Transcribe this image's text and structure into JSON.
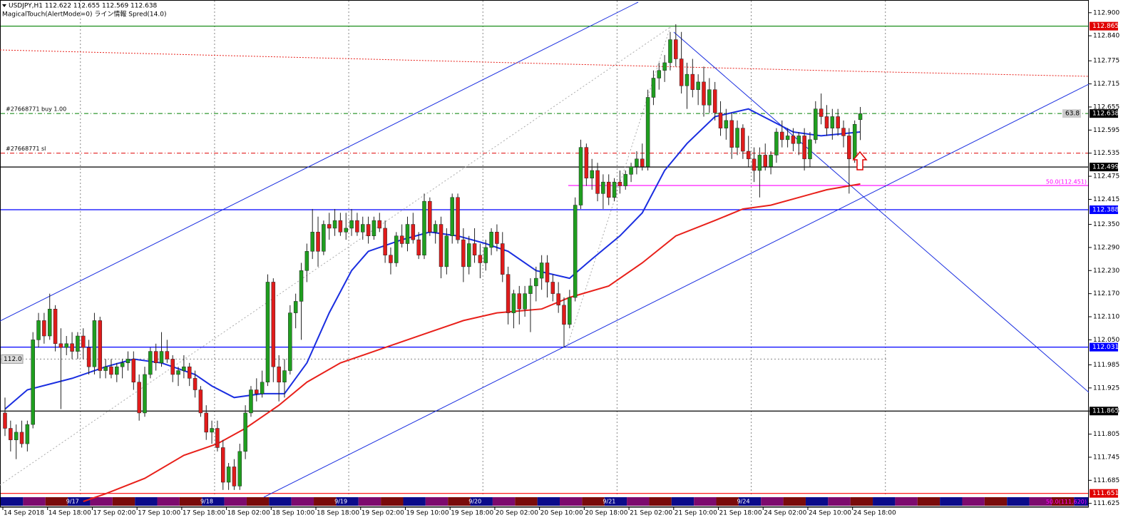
{
  "header": {
    "symbol_line": "USDJPY,H1  112.622 112.655 112.569 112.638",
    "indicator_line": "MagicalTouch(AlertMode=0) ライン情報 Spred(14.0)"
  },
  "chart_data": {
    "type": "candlestick",
    "categories": [
      "14 Sep 2018",
      null,
      null,
      null,
      null,
      null,
      null,
      null,
      "14 Sep 18:00",
      null,
      null,
      null,
      null,
      null,
      null,
      null,
      "17 Sep 02:00",
      null,
      null,
      null,
      null,
      null,
      null,
      null,
      "17 Sep 10:00",
      null,
      null,
      null,
      null,
      null,
      null,
      null,
      "17 Sep 18:00",
      null,
      null,
      null,
      null,
      null,
      null,
      null,
      "18 Sep 02:00",
      null,
      null,
      null,
      null,
      null,
      null,
      null,
      "18 Sep 10:00",
      null,
      null,
      null,
      null,
      null,
      null,
      null,
      "18 Sep 18:00",
      null,
      null,
      null,
      null,
      null,
      null,
      null,
      "19 Sep 02:00",
      null,
      null,
      null,
      null,
      null,
      null,
      null,
      "19 Sep 10:00",
      null,
      null,
      null,
      null,
      null,
      null,
      null,
      "19 Sep 18:00",
      null,
      null,
      null,
      null,
      null,
      null,
      null,
      "20 Sep 02:00",
      null,
      null,
      null,
      null,
      null,
      null,
      null,
      "20 Sep 10:00",
      null,
      null,
      null,
      null,
      null,
      null,
      null,
      "20 Sep 18:00",
      null,
      null,
      null,
      null,
      null,
      null,
      null,
      "21 Sep 02:00",
      null,
      null,
      null,
      null,
      null,
      null,
      null,
      "21 Sep 10:00",
      null,
      null,
      null,
      null,
      null,
      null,
      null,
      "21 Sep 18:00",
      null,
      null,
      null,
      null,
      null,
      null,
      null,
      "24 Sep 02:00",
      null,
      null,
      null,
      null,
      null,
      null,
      null,
      "24 Sep 10:00",
      null,
      null,
      null,
      null,
      null,
      null,
      null,
      "24 Sep 18:00",
      null
    ],
    "open": [
      111.86,
      111.82,
      111.79,
      111.81,
      111.78,
      111.83,
      112.05,
      112.1,
      112.06,
      112.13,
      112.04,
      112.03,
      112.04,
      112.02,
      112.06,
      112.03,
      111.98,
      112.1,
      111.97,
      111.98,
      111.96,
      111.98,
      111.99,
      112.0,
      111.94,
      111.86,
      111.96,
      112.02,
      111.99,
      112.02,
      112.0,
      111.96,
      111.97,
      111.98,
      111.95,
      111.92,
      111.86,
      111.81,
      111.82,
      111.77,
      111.68,
      111.72,
      111.67,
      111.76,
      111.86,
      111.92,
      111.91,
      111.94,
      112.2,
      111.98,
      111.94,
      111.97,
      112.12,
      112.15,
      112.23,
      112.28,
      112.33,
      112.28,
      112.35,
      112.34,
      112.36,
      112.33,
      112.34,
      112.36,
      112.33,
      112.35,
      112.32,
      112.36,
      112.34,
      112.27,
      112.25,
      112.32,
      112.3,
      112.35,
      112.31,
      112.27,
      112.41,
      112.33,
      112.35,
      112.24,
      112.32,
      112.42,
      112.31,
      112.24,
      112.3,
      112.27,
      112.25,
      112.29,
      112.33,
      112.3,
      112.22,
      112.12,
      112.17,
      112.13,
      112.17,
      112.19,
      112.21,
      112.25,
      112.2,
      112.17,
      112.14,
      112.09,
      112.16,
      112.4,
      112.55,
      112.47,
      112.49,
      112.43,
      112.46,
      112.42,
      112.46,
      112.45,
      112.48,
      112.5,
      112.52,
      112.5,
      112.68,
      112.73,
      112.75,
      112.77,
      112.83,
      112.78,
      112.71,
      112.74,
      112.7,
      112.72,
      112.66,
      112.7,
      112.64,
      112.6,
      112.62,
      112.55,
      112.6,
      112.54,
      112.52,
      112.49,
      112.53,
      112.5,
      112.53,
      112.59,
      112.57,
      112.58,
      112.56,
      112.58,
      112.52,
      112.57,
      112.65,
      112.63,
      112.6,
      112.63,
      112.6,
      112.58,
      112.52,
      112.622
    ],
    "high": [
      111.9,
      111.84,
      111.83,
      111.84,
      111.84,
      112.07,
      112.12,
      112.12,
      112.17,
      112.14,
      112.08,
      112.06,
      112.07,
      112.07,
      112.08,
      112.05,
      112.12,
      112.11,
      112.0,
      112.0,
      111.99,
      112.0,
      112.02,
      112.02,
      111.96,
      111.98,
      112.03,
      112.04,
      112.07,
      112.05,
      112.01,
      111.98,
      112.01,
      111.99,
      111.97,
      111.93,
      111.88,
      111.84,
      111.84,
      111.79,
      111.73,
      111.74,
      111.78,
      111.88,
      111.93,
      111.95,
      111.97,
      112.22,
      112.21,
      112.01,
      112.0,
      112.14,
      112.17,
      112.25,
      112.3,
      112.39,
      112.37,
      112.36,
      112.38,
      112.39,
      112.38,
      112.38,
      112.39,
      112.38,
      112.37,
      112.37,
      112.37,
      112.38,
      112.36,
      112.29,
      112.33,
      112.35,
      112.37,
      112.38,
      112.33,
      112.43,
      112.42,
      112.36,
      112.37,
      112.34,
      112.43,
      112.43,
      112.34,
      112.32,
      112.34,
      112.3,
      112.31,
      112.34,
      112.35,
      112.33,
      112.24,
      112.18,
      112.19,
      112.19,
      112.21,
      112.24,
      112.27,
      112.27,
      112.22,
      112.2,
      112.16,
      112.18,
      112.42,
      112.57,
      112.56,
      112.52,
      112.51,
      112.48,
      112.48,
      112.47,
      112.49,
      112.49,
      112.51,
      112.54,
      112.56,
      112.7,
      112.75,
      112.77,
      112.79,
      112.85,
      112.87,
      112.85,
      112.77,
      112.78,
      112.74,
      112.76,
      112.73,
      112.72,
      112.67,
      112.65,
      112.64,
      112.62,
      112.61,
      112.58,
      112.55,
      112.55,
      112.56,
      112.54,
      112.6,
      112.62,
      112.6,
      112.6,
      112.59,
      112.6,
      112.59,
      112.67,
      112.69,
      112.66,
      112.65,
      112.65,
      112.62,
      112.6,
      112.62,
      112.655
    ],
    "low": [
      111.8,
      111.76,
      111.74,
      111.77,
      111.76,
      111.82,
      112.03,
      112.04,
      112.05,
      112.02,
      111.87,
      112.01,
      112.0,
      112.0,
      112.0,
      111.96,
      111.96,
      111.95,
      111.95,
      111.95,
      111.94,
      111.95,
      111.97,
      111.92,
      111.84,
      111.85,
      111.95,
      111.97,
      111.98,
      111.99,
      111.94,
      111.93,
      111.95,
      111.93,
      111.9,
      111.85,
      111.79,
      111.78,
      111.76,
      111.66,
      111.66,
      111.66,
      111.66,
      111.74,
      111.85,
      111.89,
      111.9,
      111.93,
      111.94,
      111.89,
      111.9,
      111.96,
      112.08,
      112.05,
      112.2,
      112.26,
      112.24,
      112.27,
      112.31,
      112.32,
      112.32,
      112.31,
      112.32,
      112.32,
      112.31,
      112.3,
      112.31,
      112.33,
      112.25,
      112.22,
      112.24,
      112.29,
      112.28,
      112.3,
      112.26,
      112.26,
      112.32,
      112.3,
      112.21,
      112.22,
      112.3,
      112.3,
      112.2,
      112.22,
      112.25,
      112.21,
      112.23,
      112.27,
      112.28,
      112.2,
      112.09,
      112.08,
      112.09,
      112.11,
      112.07,
      112.15,
      112.18,
      112.16,
      112.15,
      112.12,
      112.03,
      112.08,
      112.15,
      112.39,
      112.45,
      112.44,
      112.41,
      112.39,
      112.4,
      112.41,
      112.43,
      112.44,
      112.46,
      112.48,
      112.49,
      112.49,
      112.66,
      112.7,
      112.72,
      112.75,
      112.76,
      112.69,
      112.65,
      112.68,
      112.66,
      112.63,
      112.64,
      112.62,
      112.58,
      112.57,
      112.52,
      112.53,
      112.52,
      112.5,
      112.46,
      112.42,
      112.49,
      112.48,
      112.51,
      112.55,
      112.55,
      112.54,
      112.53,
      112.49,
      112.5,
      112.56,
      112.61,
      112.58,
      112.57,
      112.58,
      112.55,
      112.43,
      112.51,
      112.569
    ],
    "close": [
      111.82,
      111.79,
      111.81,
      111.78,
      111.83,
      112.05,
      112.1,
      112.06,
      112.13,
      112.04,
      112.03,
      112.04,
      112.02,
      112.06,
      112.03,
      111.98,
      112.1,
      111.97,
      111.98,
      111.96,
      111.98,
      111.99,
      112.0,
      111.94,
      111.86,
      111.96,
      112.02,
      111.99,
      112.02,
      112.0,
      111.96,
      111.97,
      111.98,
      111.95,
      111.92,
      111.86,
      111.81,
      111.82,
      111.77,
      111.68,
      111.72,
      111.67,
      111.76,
      111.86,
      111.92,
      111.91,
      111.94,
      112.2,
      111.98,
      111.94,
      111.97,
      112.12,
      112.15,
      112.23,
      112.28,
      112.33,
      112.28,
      112.35,
      112.34,
      112.36,
      112.33,
      112.34,
      112.36,
      112.33,
      112.35,
      112.32,
      112.36,
      112.34,
      112.27,
      112.25,
      112.32,
      112.3,
      112.35,
      112.31,
      112.27,
      112.41,
      112.33,
      112.35,
      112.24,
      112.32,
      112.42,
      112.31,
      112.24,
      112.3,
      112.27,
      112.25,
      112.29,
      112.33,
      112.3,
      112.22,
      112.12,
      112.17,
      112.13,
      112.17,
      112.19,
      112.21,
      112.25,
      112.2,
      112.17,
      112.14,
      112.09,
      112.16,
      112.4,
      112.55,
      112.47,
      112.49,
      112.43,
      112.46,
      112.42,
      112.46,
      112.45,
      112.48,
      112.5,
      112.52,
      112.5,
      112.68,
      112.73,
      112.75,
      112.77,
      112.83,
      112.78,
      112.71,
      112.74,
      112.7,
      112.72,
      112.66,
      112.7,
      112.64,
      112.6,
      112.62,
      112.55,
      112.6,
      112.54,
      112.52,
      112.49,
      112.53,
      112.5,
      112.53,
      112.59,
      112.57,
      112.58,
      112.56,
      112.58,
      112.52,
      112.57,
      112.65,
      112.63,
      112.6,
      112.63,
      112.6,
      112.58,
      112.52,
      112.61,
      112.638
    ],
    "up_color": "#1f9e1f",
    "down_color": "#e01b1b",
    "ylim": [
      111.62,
      112.92
    ],
    "yticks": [
      {
        "value": 112.9,
        "label": "112.900"
      },
      {
        "value": 112.84,
        "label": "112.840"
      },
      {
        "value": 112.775,
        "label": "112.775"
      },
      {
        "value": 112.715,
        "label": "112.715"
      },
      {
        "value": 112.655,
        "label": "112.655"
      },
      {
        "value": 112.595,
        "label": "112.595"
      },
      {
        "value": 112.535,
        "label": "112.535"
      },
      {
        "value": 112.475,
        "label": "112.475"
      },
      {
        "value": 112.415,
        "label": "112.415"
      },
      {
        "value": 112.35,
        "label": "112.350"
      },
      {
        "value": 112.29,
        "label": "112.290"
      },
      {
        "value": 112.23,
        "label": "112.230"
      },
      {
        "value": 112.17,
        "label": "112.170"
      },
      {
        "value": 112.11,
        "label": "112.110"
      },
      {
        "value": 112.05,
        "label": "112.050"
      },
      {
        "value": 111.985,
        "label": "111.985"
      },
      {
        "value": 111.925,
        "label": "111.925"
      },
      {
        "value": 111.865,
        "label": "111.865"
      },
      {
        "value": 111.805,
        "label": "111.805"
      },
      {
        "value": 111.745,
        "label": "111.745"
      },
      {
        "value": 111.685,
        "label": "111.685"
      },
      {
        "value": 111.625,
        "label": "111.625"
      }
    ],
    "lines": [
      {
        "color": "#1a2ee0",
        "x": [
          0,
          4,
          12,
          18,
          23,
          28,
          34,
          37,
          41,
          46,
          50,
          54,
          58,
          62,
          65,
          71,
          76,
          81,
          86,
          90,
          95,
          101,
          105,
          110,
          114,
          118,
          122,
          127,
          133,
          137,
          141,
          146,
          153
        ],
        "values": [
          111.87,
          111.92,
          111.95,
          111.98,
          112.0,
          111.99,
          111.96,
          111.93,
          111.9,
          111.91,
          111.91,
          111.99,
          112.12,
          112.23,
          112.28,
          112.31,
          112.33,
          112.32,
          112.3,
          112.28,
          112.23,
          112.21,
          112.26,
          112.32,
          112.38,
          112.49,
          112.56,
          112.63,
          112.65,
          112.62,
          112.59,
          112.58,
          112.59
        ]
      },
      {
        "color": "#e8201a",
        "x": [
          14,
          18,
          25,
          32,
          38,
          43,
          49,
          54,
          60,
          68,
          76,
          82,
          88,
          96,
          101,
          108,
          114,
          120,
          127,
          132,
          137,
          142,
          147,
          153
        ],
        "values": [
          111.63,
          111.65,
          111.69,
          111.75,
          111.78,
          111.82,
          111.88,
          111.94,
          111.99,
          112.03,
          112.07,
          112.1,
          112.12,
          112.13,
          112.16,
          112.19,
          112.25,
          112.32,
          112.36,
          112.39,
          112.4,
          112.42,
          112.44,
          112.455
        ]
      }
    ],
    "levels": [
      {
        "value": 112.865,
        "label": "112.865",
        "color": "#008000",
        "tag_color": "#e00000"
      },
      {
        "value": 112.638,
        "label": "112.638",
        "color": "#008000",
        "tag_color": "#000000",
        "style": "dashdot",
        "text": "#27668771 buy 1.00"
      },
      {
        "value": 112.535,
        "color": "#e00000",
        "style": "dashdot",
        "text": "#27668771 sl"
      },
      {
        "value": 112.499,
        "label": "112.499",
        "color": "#000000",
        "tag_color": "#000000"
      },
      {
        "value": 112.451,
        "color": "#ff00ff",
        "text": "50.0(112.451)"
      },
      {
        "value": 112.388,
        "label": "112.388",
        "color": "#0000ff",
        "tag_color": "#0000ff"
      },
      {
        "value": 112.031,
        "label": "112.031",
        "color": "#0000ff",
        "tag_color": "#0000ff"
      },
      {
        "value": 111.865,
        "label": "111.865",
        "color": "#000000",
        "tag_color": "#000000"
      },
      {
        "value": 111.651,
        "label": "111.651",
        "color": "#ff0000",
        "tag_color": "#e00000"
      },
      {
        "value": 111.62,
        "color": "#ff00ff",
        "text": "50.0(111.620)"
      }
    ],
    "price_box": {
      "value": 112.0,
      "label": "112.0"
    },
    "pips_label": 63.8,
    "day_labels": [
      "9/17",
      "9/18",
      "9/19",
      "9/20",
      "9/21",
      "9/24"
    ]
  }
}
